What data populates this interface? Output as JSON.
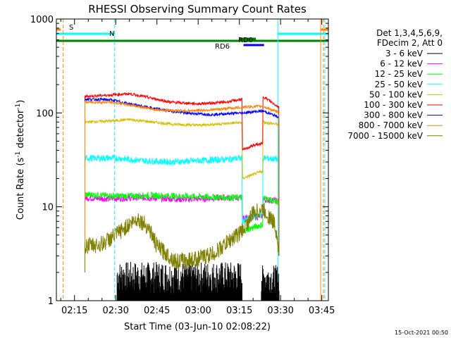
{
  "chart_data": {
    "type": "line",
    "title": "RHESSI Observing Summary Count Rates",
    "xlabel": "Start Time (03-Jun-10 02:08:22)",
    "ylabel": "Count Rate (s",
    "ylabel_sup1": "-1",
    "ylabel_mid": " detector",
    "ylabel_sup2": "-1",
    "ylabel_end": ")",
    "y_scale": "log",
    "ylim": [
      1,
      1000
    ],
    "xlim_minutes": [
      128.4,
      227.4
    ],
    "x_ticks": [
      {
        "label": "02:15",
        "m": 135
      },
      {
        "label": "02:30",
        "m": 150
      },
      {
        "label": "02:45",
        "m": 165
      },
      {
        "label": "03:00",
        "m": 180
      },
      {
        "label": "03:15",
        "m": 195
      },
      {
        "label": "03:30",
        "m": 210
      },
      {
        "label": "03:45",
        "m": 225
      }
    ],
    "y_ticks": [
      {
        "label": "1",
        "v": 1
      },
      {
        "label": "10",
        "v": 10
      },
      {
        "label": "100",
        "v": 100
      },
      {
        "label": "1000",
        "v": 1000
      }
    ],
    "legend": {
      "header1": "Det 1,3,4,5,6,9,",
      "header2": "FDecim 2, Att 0",
      "placement": "right"
    },
    "series": [
      {
        "name": "3 - 6 keV",
        "color": "#000000",
        "style": "noise",
        "segments": [
          [
            150.5,
            196.0,
            1.2,
            2.6
          ],
          [
            203.0,
            209.5,
            1.2,
            2.4
          ]
        ]
      },
      {
        "name": "6 - 12 keV",
        "color": "#ff00ff",
        "style": "line",
        "points": [
          [
            138.8,
            12.5
          ],
          [
            145,
            12.2
          ],
          [
            160,
            12.5
          ],
          [
            175,
            12.0
          ],
          [
            190,
            12.5
          ],
          [
            196,
            12.4
          ],
          [
            196.1,
            7.5
          ],
          [
            203.5,
            8.0
          ],
          [
            203.6,
            12.0
          ],
          [
            209.4,
            11.5
          ]
        ]
      },
      {
        "name": "12 - 25 keV",
        "color": "#00ff00",
        "style": "line",
        "points": [
          [
            138.8,
            13.5
          ],
          [
            150,
            13.0
          ],
          [
            165,
            13.2
          ],
          [
            180,
            12.8
          ],
          [
            196,
            12.5
          ],
          [
            196.1,
            5.5
          ],
          [
            203.5,
            6.5
          ],
          [
            203.6,
            12.5
          ],
          [
            209.4,
            11.0
          ]
        ]
      },
      {
        "name": "25 - 50 keV",
        "color": "#00ffff",
        "style": "line",
        "points": [
          [
            138.8,
            33
          ],
          [
            150,
            33
          ],
          [
            160,
            31
          ],
          [
            170,
            30
          ],
          [
            180,
            31
          ],
          [
            190,
            32
          ],
          [
            196,
            33
          ],
          [
            196.1,
            7.0
          ],
          [
            203.5,
            8.5
          ],
          [
            203.6,
            33
          ],
          [
            209.4,
            32
          ]
        ]
      },
      {
        "name": "50 - 100 keV",
        "color": "#d4c000",
        "style": "line",
        "points": [
          [
            138.8,
            80
          ],
          [
            148,
            82
          ],
          [
            155,
            85
          ],
          [
            160,
            82
          ],
          [
            170,
            76
          ],
          [
            180,
            74
          ],
          [
            190,
            77
          ],
          [
            196,
            79
          ],
          [
            196.1,
            20
          ],
          [
            203.5,
            24
          ],
          [
            203.6,
            80
          ],
          [
            209.4,
            75
          ]
        ]
      },
      {
        "name": "100 - 300 keV",
        "color": "#ff0000",
        "style": "line",
        "points": [
          [
            138.8,
            150
          ],
          [
            148,
            155
          ],
          [
            155,
            160
          ],
          [
            160,
            150
          ],
          [
            170,
            130
          ],
          [
            180,
            125
          ],
          [
            190,
            130
          ],
          [
            196,
            140
          ],
          [
            196.1,
            40
          ],
          [
            200,
            45
          ],
          [
            203.5,
            47
          ],
          [
            203.6,
            150
          ],
          [
            209.4,
            115
          ]
        ]
      },
      {
        "name": "300 - 800 keV",
        "color": "#0000ff",
        "style": "line",
        "points": [
          [
            138.8,
            140
          ],
          [
            148,
            138
          ],
          [
            155,
            125
          ],
          [
            165,
            110
          ],
          [
            175,
            100
          ],
          [
            185,
            96
          ],
          [
            196,
            100
          ],
          [
            203.5,
            105
          ],
          [
            209.4,
            90
          ]
        ]
      },
      {
        "name": "800 - 7000 keV",
        "color": "#ff8000",
        "style": "line",
        "points": [
          [
            138.8,
            130
          ],
          [
            148,
            130
          ],
          [
            155,
            122
          ],
          [
            165,
            108
          ],
          [
            175,
            105
          ],
          [
            185,
            108
          ],
          [
            196,
            115
          ],
          [
            203.5,
            118
          ],
          [
            209.4,
            100
          ]
        ]
      },
      {
        "name": "7000 - 15000 keV",
        "color": "#808000",
        "style": "line",
        "points": [
          [
            138.8,
            3.8
          ],
          [
            145,
            4.0
          ],
          [
            150,
            5.0
          ],
          [
            155,
            6.5
          ],
          [
            158,
            7.5
          ],
          [
            162,
            6.0
          ],
          [
            165,
            3.8
          ],
          [
            172,
            2.6
          ],
          [
            180,
            2.8
          ],
          [
            186,
            3.2
          ],
          [
            192,
            4.5
          ],
          [
            196,
            5.5
          ],
          [
            200,
            8.5
          ],
          [
            203.5,
            9.5
          ],
          [
            208,
            6.5
          ],
          [
            209.4,
            3.5
          ]
        ]
      }
    ],
    "annotations": [
      {
        "text": "S",
        "color": "#ff8000"
      },
      {
        "text": "N",
        "color": "#00ffff"
      },
      {
        "text": "RD0",
        "color": "#008000"
      },
      {
        "text": "RD6",
        "color": "#008000"
      }
    ],
    "bands": [
      {
        "name": "saa",
        "color": "#ff8000",
        "segments": [
          [
            128.4,
            130.0
          ],
          [
            224.6,
            227.4
          ]
        ]
      },
      {
        "name": "night",
        "color": "#00ffff",
        "segments": [
          [
            128.4,
            149.6
          ],
          [
            209.0,
            227.4
          ]
        ]
      },
      {
        "name": "decimation",
        "color": "#008000",
        "segments": [
          [
            128.4,
            227.4
          ]
        ]
      },
      {
        "name": "decimation-hi",
        "color": "#008000",
        "segments": [
          [
            195.0,
            201.0
          ]
        ]
      },
      {
        "name": "decimation-lo",
        "color": "#0000ff",
        "segments": [
          [
            196.5,
            204.0
          ]
        ]
      }
    ],
    "vlines": [
      {
        "m": 130.9,
        "color": "#ff8000",
        "dash": true
      },
      {
        "m": 149.6,
        "color": "#00ffff",
        "dash": true
      },
      {
        "m": 209.0,
        "color": "#00ffff",
        "dash": false
      },
      {
        "m": 224.6,
        "color": "#ff8000",
        "dash": false
      },
      {
        "m": 225.6,
        "color": "#ff8000",
        "dash": true
      },
      {
        "m": 226.1,
        "color": "#00ffff",
        "dash": true
      }
    ],
    "grid": false
  },
  "footer_date": "15-Oct-2021 00:50"
}
